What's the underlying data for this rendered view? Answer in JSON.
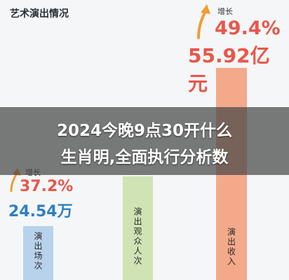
{
  "chart_data": {
    "type": "bar",
    "title": "艺术演出情况",
    "categories": [
      "演出场次",
      "演出观众人次",
      "演出收入"
    ],
    "series": [
      {
        "values": [
          24.54,
          null,
          55.92
        ],
        "value_labels": [
          "24.54万",
          "",
          "55.92亿元"
        ],
        "growth_labels": [
          "37.2%",
          "",
          "49.4%"
        ]
      }
    ],
    "growth_word": "增长",
    "colors": [
      "#b8d2ec",
      "#cfe3b4",
      "#f4a98b"
    ]
  },
  "overlay": {
    "line1": "2024今晚9点30开什么",
    "line2": "生肖明,全面执行分析数"
  },
  "colors": {
    "growth_text": "#e8574a",
    "value_text_blue": "#2e7fc1",
    "value_text_red": "#e8574a"
  },
  "icons": [
    "up-arrow-icon"
  ]
}
